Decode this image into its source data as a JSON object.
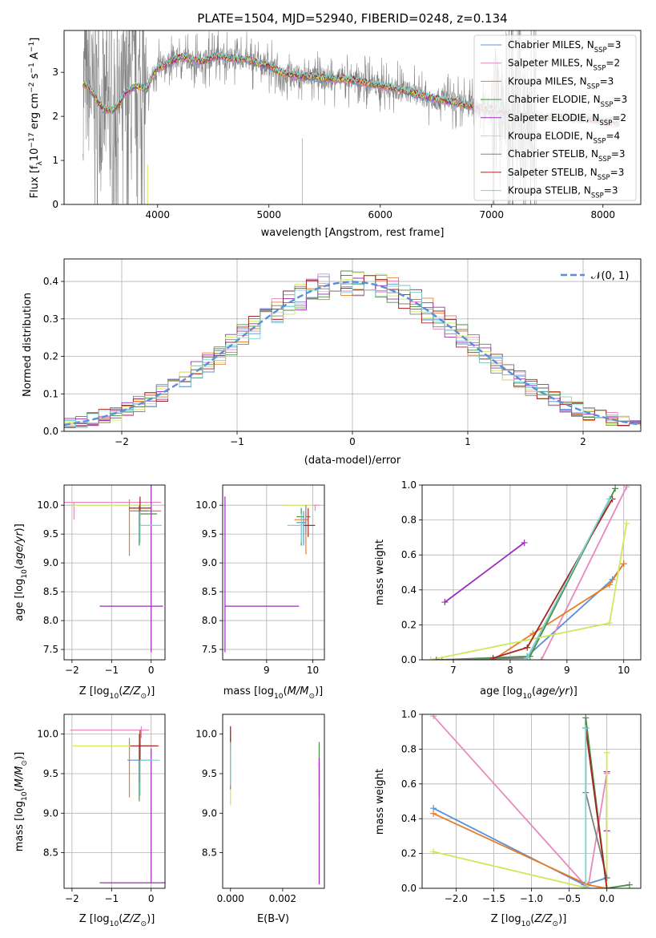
{
  "figure": {
    "title": "PLATE=1504, MJD=52940, FIBERID=0248, z=0.134"
  },
  "model_colors": [
    "#5a8fd8",
    "#e889be",
    "#e87d27",
    "#4a8f45",
    "#9c2cb8",
    "#cfe85a",
    "#808080",
    "#a52620",
    "#79d4d0"
  ],
  "chart_data": [
    {
      "id": "spectrum",
      "type": "line",
      "title": "PLATE=1504, MJD=52940, FIBERID=0248, z=0.134",
      "xlabel": "wavelength [Angstrom, rest frame]",
      "ylabel": "Flux [f_λ 10^-17 erg cm^-2 s^-1 A^-1]",
      "xlim": [
        3160,
        8340
      ],
      "ylim": [
        0,
        3.95
      ],
      "xticks": [
        4000,
        5000,
        6000,
        7000,
        8000
      ],
      "yticks": [
        0,
        1,
        2,
        3
      ],
      "grid": false,
      "legend_position": "top-right",
      "legend": [
        {
          "label": "Chabrier MILES, N",
          "sub": "SSP",
          "value": "=3"
        },
        {
          "label": "Salpeter MILES, N",
          "sub": "SSP",
          "value": "=2"
        },
        {
          "label": "Kroupa MILES, N",
          "sub": "SSP",
          "value": "=3"
        },
        {
          "label": "Chabrier ELODIE, N",
          "sub": "SSP",
          "value": "=3"
        },
        {
          "label": "Salpeter ELODIE, N",
          "sub": "SSP",
          "value": "=2"
        },
        {
          "label": "Kroupa ELODIE, N",
          "sub": "SSP",
          "value": "=4"
        },
        {
          "label": "Chabrier STELIB, N",
          "sub": "SSP",
          "value": "=3"
        },
        {
          "label": "Salpeter STELIB, N",
          "sub": "SSP",
          "value": "=3"
        },
        {
          "label": "Kroupa STELIB, N",
          "sub": "SSP",
          "value": "=3"
        }
      ],
      "observed_range": [
        3330,
        7400
      ],
      "model_curve": {
        "x": [
          3330,
          3400,
          3450,
          3500,
          3550,
          3600,
          3650,
          3700,
          3800,
          3900,
          3950,
          4000,
          4100,
          4200,
          4300,
          4400,
          4500,
          4600,
          4700,
          4800,
          4900,
          5000,
          5100,
          5200,
          5300,
          5400,
          5500,
          5600,
          5700,
          5800,
          5900,
          6000,
          6200,
          6400,
          6500,
          6600,
          6800,
          7000,
          7200,
          7400,
          7600,
          7800,
          8000,
          8150
        ],
        "y": [
          2.75,
          2.6,
          2.4,
          2.2,
          2.15,
          2.15,
          2.25,
          2.5,
          2.7,
          2.6,
          2.9,
          3.1,
          3.2,
          3.35,
          3.3,
          3.25,
          3.35,
          3.35,
          3.3,
          3.3,
          3.2,
          3.15,
          3.0,
          2.95,
          2.9,
          2.9,
          2.85,
          2.85,
          2.85,
          2.8,
          2.75,
          2.7,
          2.6,
          2.45,
          2.4,
          2.35,
          2.25,
          2.15,
          2.05,
          2.0,
          1.98,
          1.95,
          1.9,
          1.85
        ]
      }
    },
    {
      "id": "residuals",
      "type": "histogram",
      "xlabel": "(data-model)/error",
      "ylabel": "Normed distribution",
      "xlim": [
        -2.5,
        2.5
      ],
      "ylim": [
        0,
        0.46
      ],
      "xticks": [
        -2,
        -1,
        0,
        1,
        2
      ],
      "yticks": [
        0.0,
        0.1,
        0.2,
        0.3,
        0.4
      ],
      "grid": true,
      "legend_position": "top-right",
      "legend": [
        {
          "label": "𝒩(0, 1)"
        }
      ],
      "bin_width": 0.1,
      "reference_curve": "normal pdf, mean 0, sigma 1"
    },
    {
      "id": "age_vs_Z",
      "type": "errorbar",
      "xlabel": "Z [log10(Z/Z⊙)]",
      "ylabel": "age [log10(age/yr)]",
      "xlim": [
        -2.2,
        0.35
      ],
      "ylim": [
        7.32,
        10.35
      ],
      "xticks": [
        -2,
        -1,
        0
      ],
      "yticks": [
        7.5,
        8.0,
        8.5,
        9.0,
        9.5,
        10.0
      ],
      "grid": true,
      "points": [
        {
          "x": -0.28,
          "y": 9.9,
          "xerr": [
            0.28,
            0.28
          ],
          "yerr": [
            0.2,
            0.15
          ]
        },
        {
          "x": -1.95,
          "y": 10.05,
          "xerr": [
            0.25,
            2.2
          ],
          "yerr": [
            0.3,
            0.0
          ]
        },
        {
          "x": -0.55,
          "y": 9.9,
          "xerr": [
            0.0,
            0.8
          ],
          "yerr": [
            0.78,
            0.2
          ]
        },
        {
          "x": -0.3,
          "y": 9.85,
          "xerr": [
            0.0,
            0.45
          ],
          "yerr": [
            0.55,
            0.15
          ]
        },
        {
          "x": 0.0,
          "y": 8.25,
          "xerr": [
            1.3,
            0.3
          ],
          "yerr": [
            0.8,
            2.2
          ]
        },
        {
          "x": 0.0,
          "y": 10.0,
          "xerr": [
            2.0,
            0.0
          ],
          "yerr": [
            0.0,
            0.0
          ]
        },
        {
          "x": -0.28,
          "y": 9.9,
          "xerr": [
            0.0,
            0.2
          ],
          "yerr": [
            0.4,
            0.2
          ]
        },
        {
          "x": -0.28,
          "y": 9.95,
          "xerr": [
            0.28,
            0.28
          ],
          "yerr": [
            0.3,
            0.2
          ]
        },
        {
          "x": -0.28,
          "y": 9.65,
          "xerr": [
            0.0,
            0.55
          ],
          "yerr": [
            0.3,
            0.25
          ]
        }
      ]
    },
    {
      "id": "age_vs_mass",
      "type": "errorbar",
      "xlabel": "mass [log10(M/M⊙)]",
      "xlim": [
        8.05,
        10.25
      ],
      "ylim": [
        7.32,
        10.35
      ],
      "xticks": [
        9,
        10
      ],
      "yticks": [
        7.5,
        8.0,
        8.5,
        9.0,
        9.5,
        10.0
      ],
      "grid": true,
      "points": [
        {
          "x": 9.8,
          "y": 9.7,
          "xerr": [
            0.15,
            0.05
          ],
          "yerr": [
            0.4,
            0.2
          ]
        },
        {
          "x": 10.05,
          "y": 10.0,
          "xerr": [
            0.05,
            0.1
          ],
          "yerr": [
            0.1,
            0.0
          ]
        },
        {
          "x": 9.85,
          "y": 9.75,
          "xerr": [
            0.25,
            0.05
          ],
          "yerr": [
            0.6,
            0.15
          ]
        },
        {
          "x": 9.75,
          "y": 9.8,
          "xerr": [
            0.1,
            0.05
          ],
          "yerr": [
            0.5,
            0.15
          ]
        },
        {
          "x": 8.1,
          "y": 8.25,
          "xerr": [
            0.0,
            1.6
          ],
          "yerr": [
            0.8,
            1.9
          ]
        },
        {
          "x": 9.95,
          "y": 10.0,
          "xerr": [
            0.6,
            0.05
          ],
          "yerr": [
            0.0,
            0.0
          ]
        },
        {
          "x": 9.85,
          "y": 9.8,
          "xerr": [
            0.0,
            0.1
          ],
          "yerr": [
            0.3,
            0.2
          ]
        },
        {
          "x": 9.9,
          "y": 9.65,
          "xerr": [
            0.1,
            0.15
          ],
          "yerr": [
            0.2,
            0.3
          ]
        },
        {
          "x": 9.75,
          "y": 9.65,
          "xerr": [
            0.3,
            0.05
          ],
          "yerr": [
            0.3,
            0.2
          ]
        }
      ]
    },
    {
      "id": "weight_vs_age",
      "type": "line",
      "xlabel": "age [log10(age/yr)]",
      "ylabel": "mass weight",
      "xlim": [
        6.45,
        10.3
      ],
      "ylim": [
        0,
        1
      ],
      "xticks": [
        7,
        8,
        9,
        10
      ],
      "yticks": [
        0.0,
        0.2,
        0.4,
        0.6,
        0.8,
        1.0
      ],
      "grid": true,
      "series": [
        {
          "x": [
            8.3,
            9.8,
            10.0
          ],
          "y": [
            0.02,
            0.46,
            0.55
          ]
        },
        {
          "x": [
            8.55,
            10.05
          ],
          "y": [
            0.0,
            0.99
          ]
        },
        {
          "x": [
            7.7,
            8.4,
            9.75,
            10.0
          ],
          "y": [
            0.0,
            0.15,
            0.43,
            0.55
          ]
        },
        {
          "x": [
            6.8,
            8.35,
            9.85
          ],
          "y": [
            0.0,
            0.02,
            0.98
          ]
        },
        {
          "x": [
            6.85,
            8.25
          ],
          "y": [
            0.33,
            0.67
          ]
        },
        {
          "x": [
            6.6,
            9.75,
            10.05
          ],
          "y": [
            0.0,
            0.21,
            0.78
          ]
        },
        {
          "x": [
            6.7,
            8.3,
            9.75
          ],
          "y": [
            0.0,
            0.01,
            0.92
          ]
        },
        {
          "x": [
            7.7,
            8.3,
            9.8
          ],
          "y": [
            0.01,
            0.07,
            0.92
          ]
        },
        {
          "x": [
            8.3,
            9.75
          ],
          "y": [
            0.01,
            0.92
          ]
        }
      ]
    },
    {
      "id": "mass_vs_Z",
      "type": "errorbar",
      "xlabel": "Z [log10(Z/Z⊙)]",
      "ylabel": "mass [log10(M/M⊙)]",
      "xlim": [
        -2.2,
        0.35
      ],
      "ylim": [
        8.05,
        10.25
      ],
      "xticks": [
        -2,
        -1,
        0
      ],
      "yticks": [
        8.5,
        9.0,
        9.5,
        10.0
      ],
      "grid": true,
      "points": [
        {
          "x": -0.3,
          "y": 9.67,
          "xerr": [
            0.3,
            0.3
          ],
          "yerr": [
            0.3,
            0.2
          ]
        },
        {
          "x": -0.25,
          "y": 10.05,
          "xerr": [
            1.8,
            0.2
          ],
          "yerr": [
            0.1,
            0.05
          ]
        },
        {
          "x": -0.55,
          "y": 9.85,
          "xerr": [
            0.0,
            0.75
          ],
          "yerr": [
            0.65,
            0.1
          ]
        },
        {
          "x": -0.3,
          "y": 9.85,
          "xerr": [
            0.0,
            0.45
          ],
          "yerr": [
            0.7,
            0.15
          ]
        },
        {
          "x": 0.0,
          "y": 8.12,
          "xerr": [
            1.3,
            0.35
          ],
          "yerr": [
            0.0,
            1.7
          ]
        },
        {
          "x": 0.0,
          "y": 9.85,
          "xerr": [
            2.0,
            0.0
          ],
          "yerr": [
            0.0,
            0.0
          ]
        },
        {
          "x": -0.28,
          "y": 9.85,
          "xerr": [
            0.0,
            0.3
          ],
          "yerr": [
            0.45,
            0.1
          ]
        },
        {
          "x": -0.28,
          "y": 9.85,
          "xerr": [
            0.25,
            0.45
          ],
          "yerr": [
            0.45,
            0.2
          ]
        },
        {
          "x": -0.28,
          "y": 9.67,
          "xerr": [
            0.0,
            0.5
          ],
          "yerr": [
            0.45,
            0.0
          ]
        }
      ]
    },
    {
      "id": "ebv",
      "type": "errorbar",
      "xlabel": "E(B-V)",
      "xlim": [
        -0.0003,
        0.0036
      ],
      "ylim": [
        8.05,
        10.25
      ],
      "xticks": [
        0.0,
        0.002
      ],
      "xticklabels": [
        "0.000",
        "0.002"
      ],
      "yticks": [
        8.5,
        9.0,
        9.5,
        10.0
      ],
      "grid": false,
      "points": [
        {
          "x": 0.0,
          "y": 9.65,
          "xerr": [
            0,
            0
          ],
          "yerr": [
            0.3,
            0.3
          ]
        },
        {
          "x": 0.0,
          "y": 10.05,
          "xerr": [
            0,
            0
          ],
          "yerr": [
            0.05,
            0.05
          ]
        },
        {
          "x": 0.0,
          "y": 9.85,
          "xerr": [
            0,
            0
          ],
          "yerr": [
            0.3,
            0.1
          ]
        },
        {
          "x": 0.0034,
          "y": 9.5,
          "xerr": [
            0,
            0
          ],
          "yerr": [
            0.3,
            0.4
          ]
        },
        {
          "x": 0.0034,
          "y": 8.8,
          "xerr": [
            0,
            0
          ],
          "yerr": [
            0.7,
            0.9
          ]
        },
        {
          "x": 0.0,
          "y": 9.5,
          "xerr": [
            0,
            0
          ],
          "yerr": [
            0.4,
            0.4
          ]
        },
        {
          "x": 0.0,
          "y": 9.7,
          "xerr": [
            0,
            0
          ],
          "yerr": [
            0.4,
            0.3
          ]
        },
        {
          "x": 0.0,
          "y": 9.9,
          "xerr": [
            0,
            0
          ],
          "yerr": [
            0.1,
            0.2
          ]
        },
        {
          "x": 0.0,
          "y": 9.7,
          "xerr": [
            0,
            0
          ],
          "yerr": [
            0.35,
            0.2
          ]
        }
      ]
    },
    {
      "id": "weight_vs_Z",
      "type": "line",
      "xlabel": "Z [log10(Z/Z⊙)]",
      "ylabel": "mass weight",
      "xlim": [
        -2.45,
        0.45
      ],
      "ylim": [
        0,
        1
      ],
      "xticks": [
        -2.0,
        -1.5,
        -1.0,
        -0.5,
        0.0
      ],
      "xticklabels": [
        "−2.0",
        "−1.5",
        "−1.0",
        "−0.5",
        "0.0"
      ],
      "yticks": [
        0.0,
        0.2,
        0.4,
        0.6,
        0.8,
        1.0
      ],
      "grid": true,
      "series": [
        {
          "x": [
            -2.3,
            -0.3,
            0.0
          ],
          "y": [
            0.46,
            0.02,
            0.06
          ]
        },
        {
          "x": [
            -2.3,
            -0.25,
            0.0
          ],
          "y": [
            0.99,
            0.0,
            0.66
          ]
        },
        {
          "x": [
            -2.3,
            -0.25,
            0.0
          ],
          "y": [
            0.43,
            0.02,
            0.0
          ]
        },
        {
          "x": [
            -0.28,
            -0.28,
            0.0,
            0.3
          ],
          "y": [
            0.92,
            0.98,
            0.0,
            0.02
          ]
        },
        {
          "x": [
            0.0,
            0.0
          ],
          "y": [
            0.33,
            0.67
          ]
        },
        {
          "x": [
            -2.3,
            -0.25,
            0.0,
            0.0
          ],
          "y": [
            0.21,
            0.0,
            0.0,
            0.78
          ]
        },
        {
          "x": [
            -0.28,
            -0.28,
            0.0
          ],
          "y": [
            0.92,
            0.55,
            0.06
          ]
        },
        {
          "x": [
            -0.28,
            0.0
          ],
          "y": [
            0.92,
            0.0
          ]
        },
        {
          "x": [
            -0.28,
            -0.28
          ],
          "y": [
            0.92,
            0.01
          ]
        }
      ]
    }
  ]
}
